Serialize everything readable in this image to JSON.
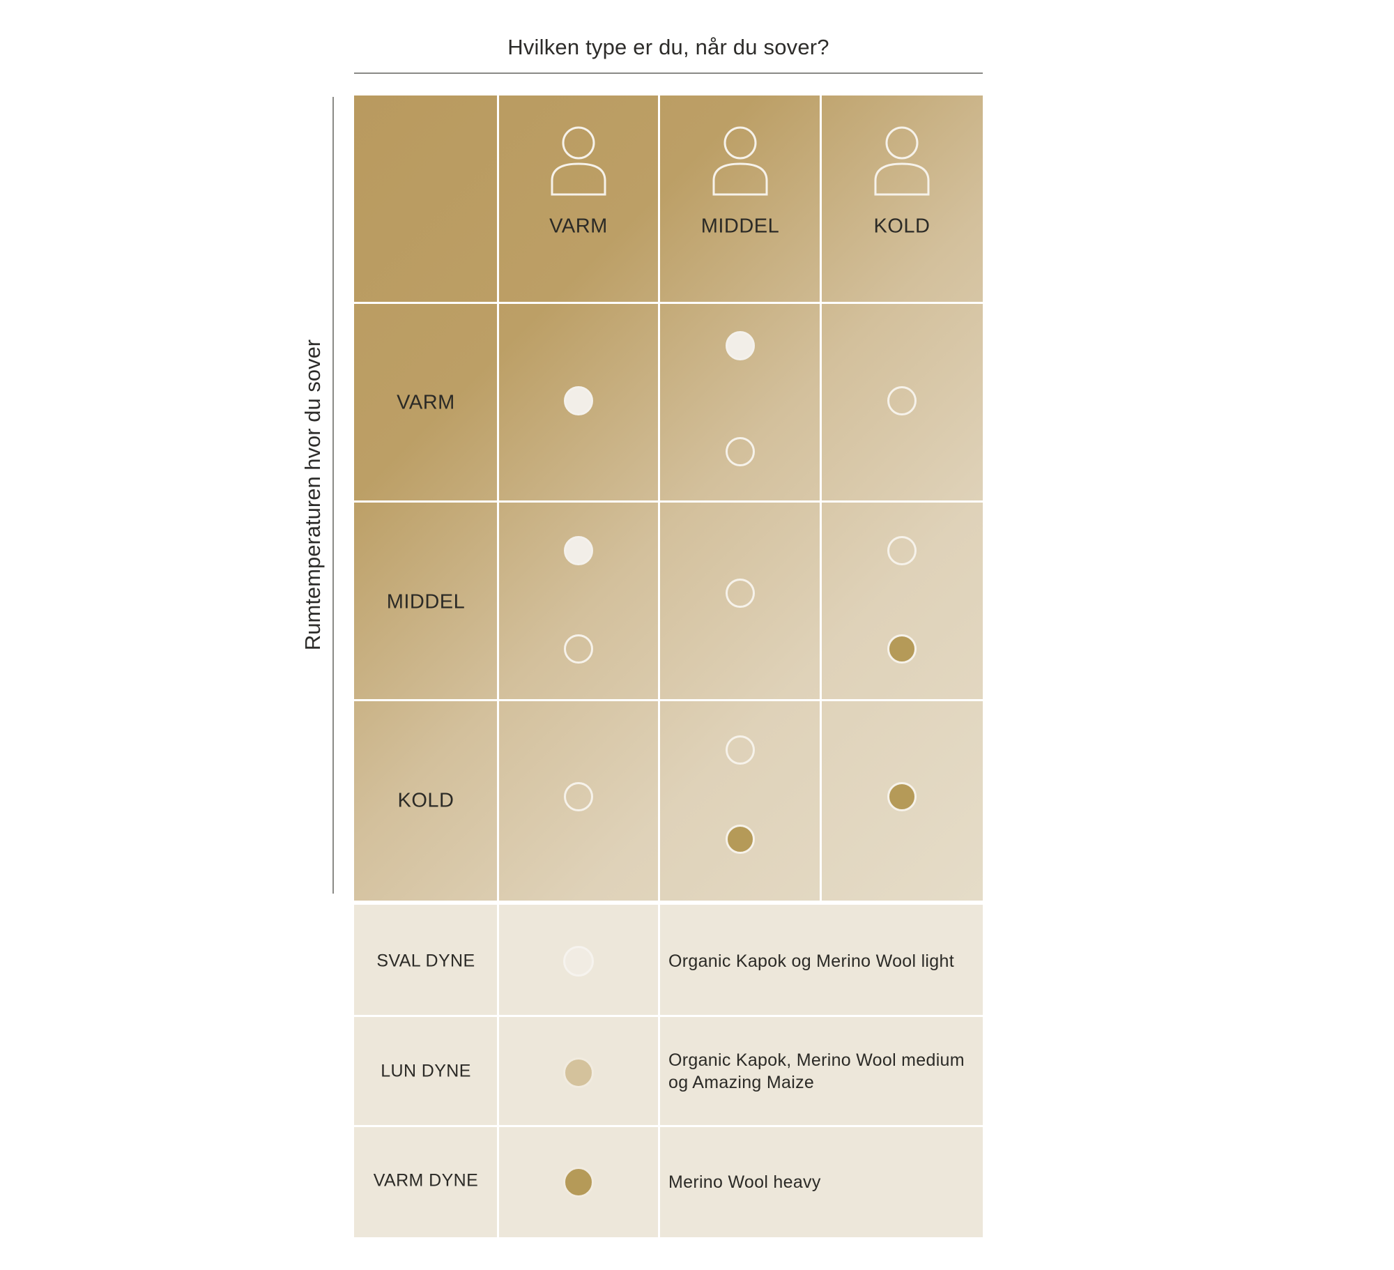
{
  "title": "Hvilken type er du, når du sover?",
  "y_axis_label": "Rumtemperaturen hvor du sover",
  "columns": [
    "VARM",
    "MIDDEL",
    "KOLD"
  ],
  "rows": [
    "VARM",
    "MIDDEL",
    "KOLD"
  ],
  "icons": {
    "person": "person-icon"
  },
  "colors": {
    "sval": "#f2eee8",
    "lun": "#d4c29c",
    "varm": "#b59a58",
    "matrix_dark": "#b99a5f",
    "matrix_light": "#e5dcc8",
    "legend_bg": "#ede7da"
  },
  "matrix": [
    {
      "row": "VARM",
      "cells": [
        [
          "sval"
        ],
        [
          "sval",
          "lun"
        ],
        [
          "lun"
        ]
      ]
    },
    {
      "row": "MIDDEL",
      "cells": [
        [
          "sval",
          "lun"
        ],
        [
          "lun"
        ],
        [
          "lun",
          "varm"
        ]
      ]
    },
    {
      "row": "KOLD",
      "cells": [
        [
          "lun"
        ],
        [
          "lun",
          "varm"
        ],
        [
          "varm"
        ]
      ]
    }
  ],
  "legend": [
    {
      "key": "sval",
      "label": "SVAL DYNE",
      "desc_lines": [
        "Organic Kapok og Merino Wool light"
      ]
    },
    {
      "key": "lun",
      "label": "LUN DYNE",
      "desc_lines": [
        "Organic Kapok, Merino Wool medium",
        "og Amazing Maize"
      ]
    },
    {
      "key": "varm",
      "label": "VARM DYNE",
      "desc_lines": [
        "Merino Wool heavy"
      ]
    }
  ]
}
